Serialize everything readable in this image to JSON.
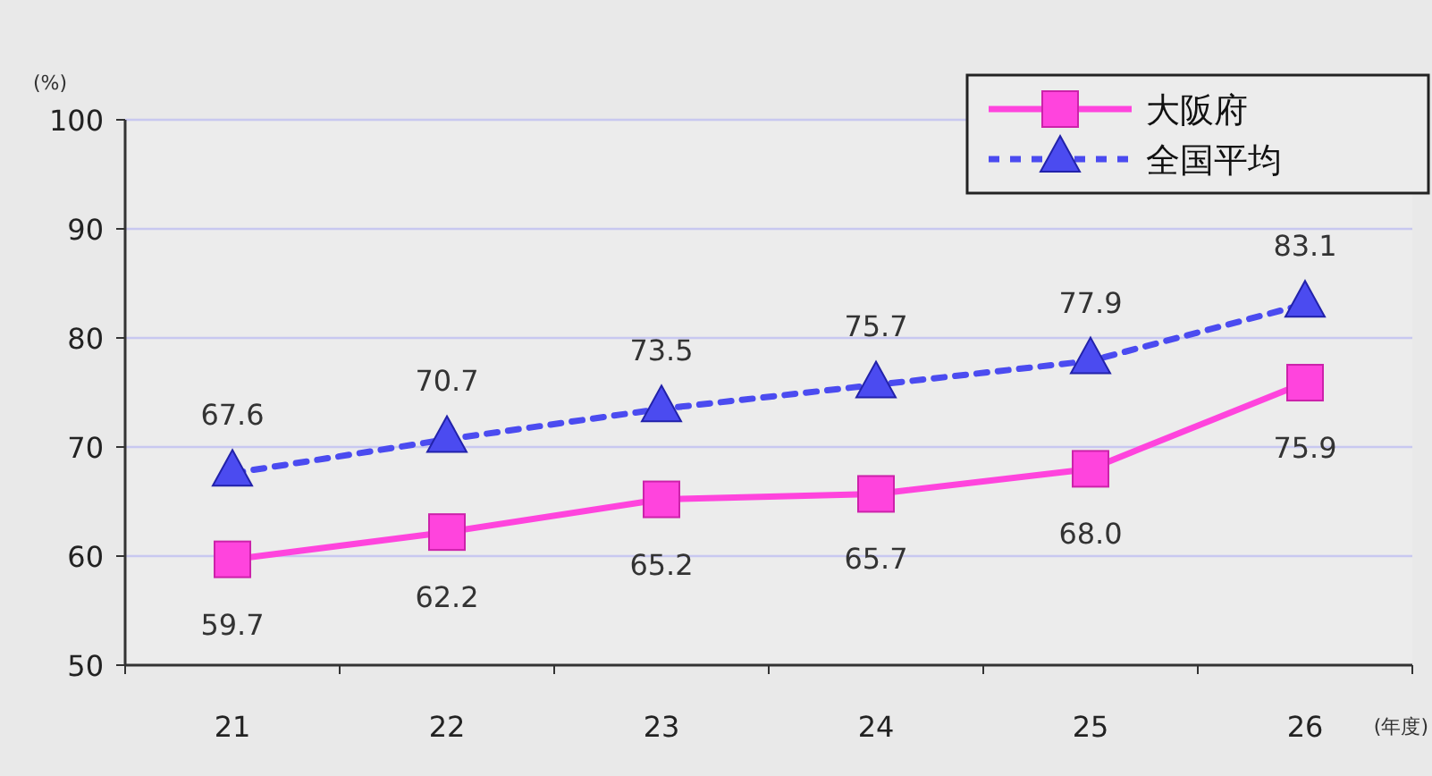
{
  "chart_data": {
    "type": "line",
    "ylabel": "(%)",
    "xlabel": "(年度)",
    "categories": [
      "21",
      "22",
      "23",
      "24",
      "25",
      "26"
    ],
    "series": [
      {
        "name": "大阪府",
        "color": "#ff44dd",
        "values": [
          59.7,
          62.2,
          65.2,
          65.7,
          68.0,
          75.9
        ],
        "value_labels": [
          "59.7",
          "62.2",
          "65.2",
          "65.7",
          "68.0",
          "75.9"
        ],
        "marker": "square",
        "line_style": "solid"
      },
      {
        "name": "全国平均",
        "color": "#4b4bf0",
        "values": [
          67.6,
          70.7,
          73.5,
          75.7,
          77.9,
          83.1
        ],
        "value_labels": [
          "67.6",
          "70.7",
          "73.5",
          "75.7",
          "77.9",
          "83.1"
        ],
        "marker": "triangle",
        "line_style": "dashed"
      }
    ],
    "ylim": [
      50,
      100
    ],
    "yticks": [
      50,
      60,
      70,
      80,
      90,
      100
    ],
    "grid": "y",
    "legend": "top right"
  }
}
